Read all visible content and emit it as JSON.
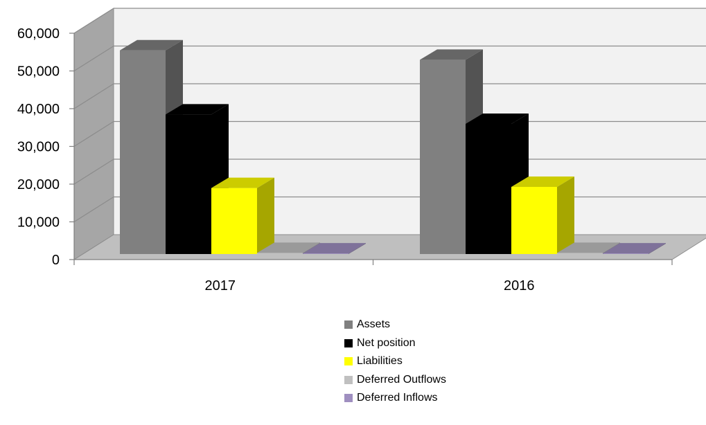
{
  "chart_data": {
    "type": "bar",
    "categories": [
      "2017",
      "2016"
    ],
    "series": [
      {
        "name": "Assets",
        "values": [
          54000,
          51500
        ],
        "color": "#808080"
      },
      {
        "name": "Net position",
        "values": [
          37000,
          34500
        ],
        "color": "#000000"
      },
      {
        "name": "Liabilities",
        "values": [
          17500,
          17800
        ],
        "color": "#ffff00"
      },
      {
        "name": "Deferred Outflows",
        "values": [
          300,
          300
        ],
        "color": "#c0c0c0"
      },
      {
        "name": "Deferred Inflows",
        "values": [
          150,
          150
        ],
        "color": "#9f8fc0"
      }
    ],
    "yticks": [
      "0",
      "10,000",
      "20,000",
      "30,000",
      "40,000",
      "50,000",
      "60,000"
    ],
    "ylim": [
      0,
      60000
    ],
    "title": "",
    "xlabel": "",
    "ylabel": "",
    "grid": true,
    "style": "3d",
    "legend_position": "bottom"
  }
}
